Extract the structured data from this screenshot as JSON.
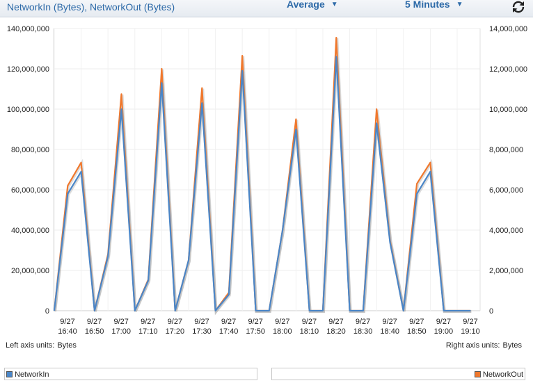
{
  "header": {
    "title": "NetworkIn (Bytes), NetworkOut (Bytes)",
    "statistic": "Average",
    "period": "5 Minutes",
    "refresh_icon": "refresh-icon"
  },
  "chart_data": {
    "type": "line",
    "x": [
      "9/27 16:35",
      "9/27 16:40",
      "9/27 16:45",
      "9/27 16:50",
      "9/27 16:55",
      "9/27 17:00",
      "9/27 17:05",
      "9/27 17:10",
      "9/27 17:15",
      "9/27 17:20",
      "9/27 17:25",
      "9/27 17:30",
      "9/27 17:35",
      "9/27 17:40",
      "9/27 17:45",
      "9/27 17:50",
      "9/27 17:55",
      "9/27 18:00",
      "9/27 18:05",
      "9/27 18:10",
      "9/27 18:15",
      "9/27 18:20",
      "9/27 18:25",
      "9/27 18:30",
      "9/27 18:35",
      "9/27 18:40",
      "9/27 18:45",
      "9/27 18:50",
      "9/27 18:55",
      "9/27 19:00",
      "9/27 19:05",
      "9/27 19:10"
    ],
    "tick_labels": [
      {
        "date": "9/27",
        "time": "16:40"
      },
      {
        "date": "9/27",
        "time": "16:50"
      },
      {
        "date": "9/27",
        "time": "17:00"
      },
      {
        "date": "9/27",
        "time": "17:10"
      },
      {
        "date": "9/27",
        "time": "17:20"
      },
      {
        "date": "9/27",
        "time": "17:30"
      },
      {
        "date": "9/27",
        "time": "17:40"
      },
      {
        "date": "9/27",
        "time": "17:50"
      },
      {
        "date": "9/27",
        "time": "18:00"
      },
      {
        "date": "9/27",
        "time": "18:10"
      },
      {
        "date": "9/27",
        "time": "18:20"
      },
      {
        "date": "9/27",
        "time": "18:30"
      },
      {
        "date": "9/27",
        "time": "18:40"
      },
      {
        "date": "9/27",
        "time": "18:50"
      },
      {
        "date": "9/27",
        "time": "19:00"
      },
      {
        "date": "9/27",
        "time": "19:10"
      }
    ],
    "series": [
      {
        "name": "NetworkIn",
        "axis": "left",
        "color": "#4a86c8",
        "values": [
          0,
          58000000,
          69000000,
          0,
          27000000,
          100000000,
          0,
          15000000,
          113000000,
          0,
          25000000,
          103000000,
          0,
          8000000,
          119000000,
          0,
          0,
          40000000,
          90000000,
          0,
          0,
          126000000,
          0,
          0,
          93000000,
          34000000,
          0,
          58000000,
          69000000,
          0,
          0,
          0
        ]
      },
      {
        "name": "NetworkOut",
        "axis": "right",
        "color": "#f0782d",
        "values": [
          0,
          6200000,
          7350000,
          0,
          2800000,
          10750000,
          0,
          1550000,
          12000000,
          0,
          2500000,
          11050000,
          0,
          900000,
          12650000,
          0,
          0,
          4000000,
          9500000,
          0,
          0,
          13550000,
          0,
          0,
          10000000,
          3500000,
          0,
          6300000,
          7350000,
          0,
          0,
          0
        ]
      }
    ],
    "y_left": {
      "ylim": [
        0,
        140000000
      ],
      "ticks": [
        "0",
        "20,000,000",
        "40,000,000",
        "60,000,000",
        "80,000,000",
        "100,000,000",
        "120,000,000",
        "140,000,000"
      ]
    },
    "y_right": {
      "ylim": [
        0,
        14000000
      ],
      "ticks": [
        "0",
        "2,000,000",
        "4,000,000",
        "6,000,000",
        "8,000,000",
        "10,000,000",
        "12,000,000",
        "14,000,000"
      ]
    },
    "grid": true
  },
  "units": {
    "left_label": "Left axis units:",
    "left_value": "Bytes",
    "right_label": "Right axis units:",
    "right_value": "Bytes"
  },
  "legend": {
    "left_item": "NetworkIn",
    "left_color": "#4a86c8",
    "right_item": "NetworkOut",
    "right_color": "#f0782d"
  }
}
